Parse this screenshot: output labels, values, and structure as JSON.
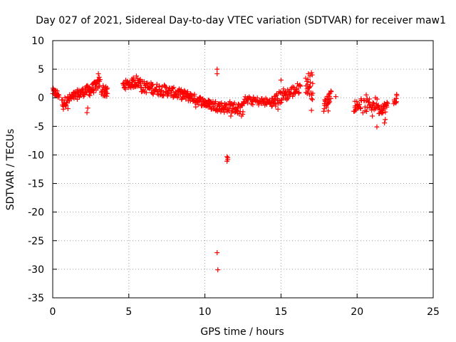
{
  "chart_data": {
    "type": "scatter",
    "title": "Day 027 of 2021, Sidereal Day-to-day VTEC variation (SDTVAR) for receiver maw1",
    "xlabel": "GPS time / hours",
    "ylabel": "SDTVAR / TECUs",
    "xlim": [
      0,
      25
    ],
    "ylim": [
      -35,
      10
    ],
    "xticks": [
      0,
      5,
      10,
      15,
      20,
      25
    ],
    "yticks": [
      10,
      5,
      0,
      -5,
      -10,
      -15,
      -20,
      -25,
      -30,
      -35
    ],
    "grid": true,
    "marker": "+",
    "color": "#ff0000",
    "segments": [
      {
        "t0": 0.0,
        "t1": 0.4,
        "v0": 1.0,
        "v1": 0.5,
        "spread": 1.4,
        "n": 20
      },
      {
        "t0": 0.6,
        "t1": 1.6,
        "v0": -1.0,
        "v1": 0.6,
        "spread": 1.6,
        "n": 40
      },
      {
        "t0": 1.6,
        "t1": 2.4,
        "v0": 0.5,
        "v1": 1.5,
        "spread": 1.6,
        "n": 35
      },
      {
        "t0": 2.4,
        "t1": 3.1,
        "v0": 1.2,
        "v1": 2.6,
        "spread": 1.8,
        "n": 35
      },
      {
        "t0": 3.2,
        "t1": 3.6,
        "v0": 1.5,
        "v1": 0.8,
        "spread": 2.0,
        "n": 20
      },
      {
        "t0": 4.6,
        "t1": 5.8,
        "v0": 2.2,
        "v1": 2.8,
        "spread": 1.6,
        "n": 45
      },
      {
        "t0": 5.8,
        "t1": 7.5,
        "v0": 2.0,
        "v1": 1.2,
        "spread": 2.0,
        "n": 65
      },
      {
        "t0": 7.5,
        "t1": 9.0,
        "v0": 1.2,
        "v1": 0.2,
        "spread": 1.8,
        "n": 60
      },
      {
        "t0": 9.0,
        "t1": 10.4,
        "v0": 0.2,
        "v1": -1.3,
        "spread": 1.6,
        "n": 55
      },
      {
        "t0": 10.4,
        "t1": 11.4,
        "v0": -1.2,
        "v1": -1.8,
        "spread": 1.8,
        "n": 40
      },
      {
        "t0": 11.4,
        "t1": 12.5,
        "v0": -1.5,
        "v1": -2.0,
        "spread": 2.0,
        "n": 40
      },
      {
        "t0": 12.5,
        "t1": 14.4,
        "v0": -0.4,
        "v1": -0.8,
        "spread": 1.4,
        "n": 55
      },
      {
        "t0": 14.4,
        "t1": 15.3,
        "v0": -1.0,
        "v1": 0.8,
        "spread": 2.4,
        "n": 35
      },
      {
        "t0": 15.3,
        "t1": 16.3,
        "v0": 0.5,
        "v1": 1.8,
        "spread": 2.0,
        "n": 35
      },
      {
        "t0": 16.6,
        "t1": 17.1,
        "v0": 2.5,
        "v1": 1.0,
        "spread": 3.0,
        "n": 20
      },
      {
        "t0": 17.8,
        "t1": 18.3,
        "v0": -1.5,
        "v1": 0.6,
        "spread": 2.0,
        "n": 25
      },
      {
        "t0": 19.8,
        "t1": 20.3,
        "v0": -1.5,
        "v1": -1.0,
        "spread": 1.8,
        "n": 20
      },
      {
        "t0": 20.4,
        "t1": 21.4,
        "v0": -1.5,
        "v1": -1.0,
        "spread": 2.4,
        "n": 30
      },
      {
        "t0": 21.4,
        "t1": 22.0,
        "v0": -2.0,
        "v1": -1.5,
        "spread": 1.8,
        "n": 25
      },
      {
        "t0": 22.4,
        "t1": 22.6,
        "v0": -0.8,
        "v1": 0.0,
        "spread": 1.2,
        "n": 8
      }
    ],
    "points": [
      [
        10.8,
        5.0
      ],
      [
        10.8,
        4.2
      ],
      [
        10.8,
        -27.1
      ],
      [
        10.85,
        -30.1
      ],
      [
        11.45,
        -10.3
      ],
      [
        11.5,
        -10.8
      ],
      [
        11.45,
        -11.1
      ],
      [
        11.5,
        -10.5
      ],
      [
        2.25,
        -2.6
      ],
      [
        2.3,
        -1.8
      ],
      [
        0.7,
        -2.0
      ],
      [
        1.0,
        -1.9
      ],
      [
        3.0,
        4.2
      ],
      [
        3.05,
        3.6
      ],
      [
        5.5,
        3.8
      ],
      [
        5.3,
        3.5
      ],
      [
        17.0,
        4.4
      ],
      [
        16.9,
        3.8
      ],
      [
        17.05,
        4.0
      ],
      [
        16.8,
        4.2
      ],
      [
        17.0,
        -2.2
      ],
      [
        18.1,
        -2.3
      ],
      [
        18.6,
        0.2
      ],
      [
        19.9,
        -2.0
      ],
      [
        20.6,
        0.5
      ],
      [
        21.3,
        -5.1
      ],
      [
        21.8,
        -4.4
      ],
      [
        21.85,
        -3.8
      ],
      [
        22.6,
        0.6
      ],
      [
        22.55,
        -0.9
      ],
      [
        21.0,
        -3.2
      ],
      [
        15.0,
        3.1
      ],
      [
        11.7,
        -3.2
      ],
      [
        12.4,
        -3.2
      ],
      [
        14.8,
        -2.0
      ],
      [
        9.4,
        -1.6
      ]
    ]
  }
}
